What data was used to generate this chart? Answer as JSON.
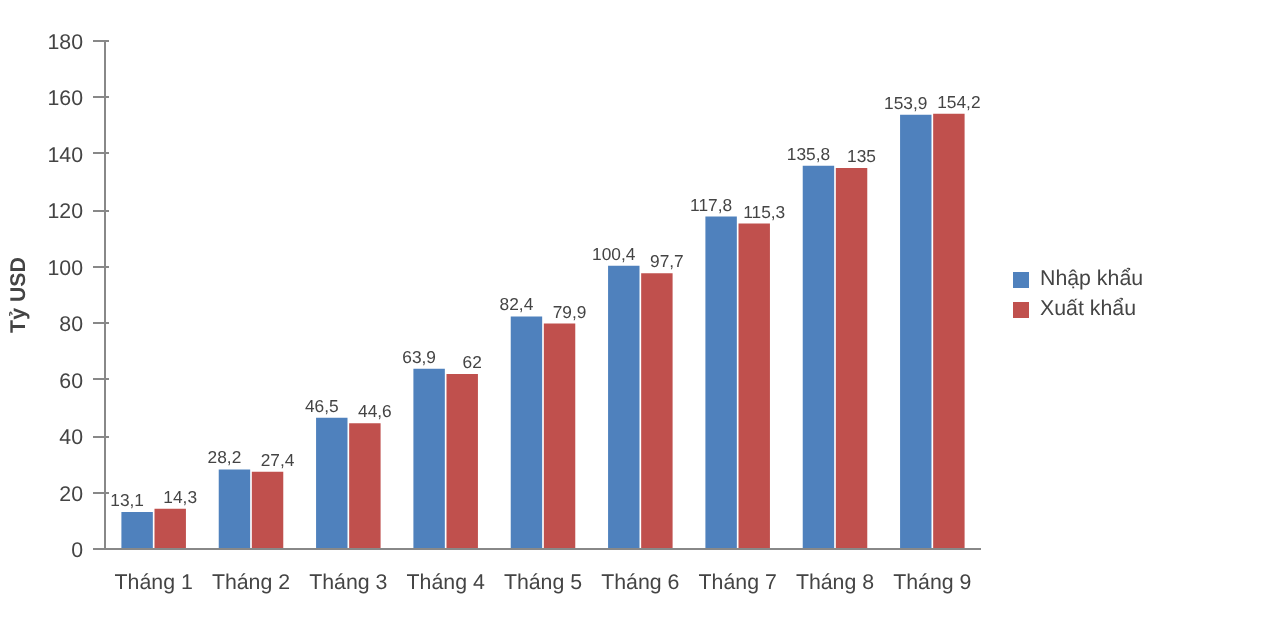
{
  "chart_data": {
    "type": "bar",
    "ylabel": "Tỷ USD",
    "categories": [
      "Tháng 1",
      "Tháng 2",
      "Tháng 3",
      "Tháng 4",
      "Tháng 5",
      "Tháng 6",
      "Tháng 7",
      "Tháng 8",
      "Tháng 9"
    ],
    "series": [
      {
        "name": "Nhập khẩu",
        "color": "#4f81bd",
        "values": [
          13.1,
          28.2,
          46.5,
          63.9,
          82.4,
          100.4,
          117.8,
          135.8,
          153.9
        ],
        "value_labels": [
          "13,1",
          "28,2",
          "46,5",
          "63,9",
          "82,4",
          "100,4",
          "117,8",
          "135,8",
          "153,9"
        ]
      },
      {
        "name": "Xuất khẩu",
        "color": "#c0504d",
        "values": [
          14.3,
          27.4,
          44.6,
          62,
          79.9,
          97.7,
          115.3,
          135,
          154.2
        ],
        "value_labels": [
          "14,3",
          "27,4",
          "44,6",
          "62",
          "79,9",
          "97,7",
          "115,3",
          "135",
          "154,2"
        ]
      }
    ],
    "ylim": [
      0,
      180
    ],
    "yticks": [
      0,
      20,
      40,
      60,
      80,
      100,
      120,
      140,
      160,
      180
    ],
    "grid": false,
    "legend": "right"
  }
}
